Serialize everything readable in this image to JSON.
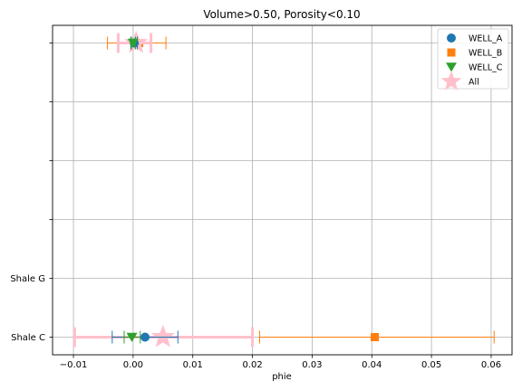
{
  "chart_data": {
    "type": "scatter",
    "title": "Volume>0.50, Porosity<0.10",
    "xlabel": "phie",
    "ylabel": "",
    "xlim": [
      -0.0135,
      0.0635
    ],
    "ylim": [
      -0.3,
      5.3
    ],
    "x_ticks": [
      {
        "value": -0.01,
        "label": "−0.01"
      },
      {
        "value": 0.0,
        "label": "0.00"
      },
      {
        "value": 0.01,
        "label": "0.01"
      },
      {
        "value": 0.02,
        "label": "0.02"
      },
      {
        "value": 0.03,
        "label": "0.03"
      },
      {
        "value": 0.04,
        "label": "0.04"
      },
      {
        "value": 0.05,
        "label": "0.05"
      },
      {
        "value": 0.06,
        "label": "0.06"
      }
    ],
    "y_ticks": [
      {
        "value": 0,
        "label": "Shale C"
      },
      {
        "value": 1,
        "label": "Shale G"
      },
      {
        "value": 2,
        "label": ""
      },
      {
        "value": 3,
        "label": ""
      },
      {
        "value": 4,
        "label": ""
      },
      {
        "value": 5,
        "label": ""
      }
    ],
    "grid": true,
    "legend_position": "top-right",
    "series": [
      {
        "name": "WELL_A",
        "marker": "circle",
        "color": "#1f77b4",
        "points": [
          {
            "y": 0,
            "x": 0.002,
            "xmin": -0.0035,
            "xmax": 0.0075
          },
          {
            "y": 5,
            "x": 0.0002,
            "xmin": -0.0003,
            "xmax": 0.0007
          }
        ]
      },
      {
        "name": "WELL_B",
        "marker": "square",
        "color": "#ff7f0e",
        "points": [
          {
            "y": 0,
            "x": 0.0405,
            "xmin": 0.0212,
            "xmax": 0.0605
          },
          {
            "y": 5,
            "x": 0.001,
            "xmin": -0.0043,
            "xmax": 0.0055
          }
        ]
      },
      {
        "name": "WELL_C",
        "marker": "triangle-down",
        "color": "#2ca02c",
        "points": [
          {
            "y": 0,
            "x": -0.0002,
            "xmin": -0.0015,
            "xmax": 0.0012
          },
          {
            "y": 5,
            "x": 0.0,
            "xmin": -0.0004,
            "xmax": 0.0004
          }
        ]
      },
      {
        "name": "All",
        "marker": "star",
        "color": "#ffc0cb",
        "points": [
          {
            "y": 0,
            "x": 0.005,
            "xmin": -0.0098,
            "xmax": 0.02
          },
          {
            "y": 5,
            "x": 0.0005,
            "xmin": -0.0025,
            "xmax": 0.003
          }
        ]
      }
    ]
  }
}
